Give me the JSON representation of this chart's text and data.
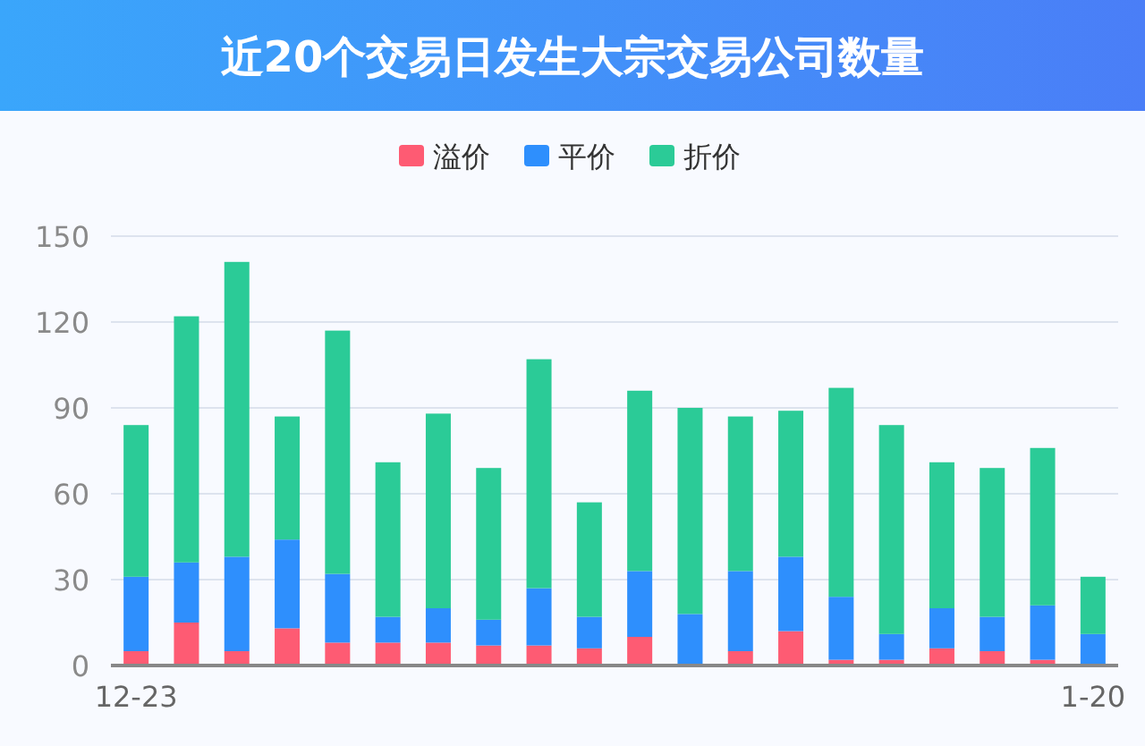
{
  "chart_data": {
    "type": "bar",
    "title": "近20个交易日发生大宗交易公司数量",
    "stacked": true,
    "categories": [
      "12-23",
      null,
      null,
      null,
      null,
      null,
      null,
      null,
      null,
      null,
      null,
      null,
      null,
      null,
      null,
      null,
      null,
      null,
      null,
      "1-20"
    ],
    "series": [
      {
        "name": "溢价",
        "color": "#fe5b73",
        "values": [
          5,
          15,
          5,
          13,
          8,
          8,
          8,
          7,
          7,
          6,
          10,
          0,
          5,
          12,
          2,
          2,
          6,
          5,
          2,
          0
        ]
      },
      {
        "name": "平价",
        "color": "#2e8ffd",
        "values": [
          26,
          21,
          33,
          31,
          24,
          9,
          12,
          9,
          20,
          11,
          23,
          18,
          28,
          26,
          22,
          9,
          14,
          12,
          19,
          11
        ]
      },
      {
        "name": "折价",
        "color": "#2bcb97",
        "values": [
          53,
          86,
          103,
          43,
          85,
          54,
          68,
          53,
          80,
          40,
          63,
          72,
          54,
          51,
          73,
          73,
          51,
          52,
          55,
          20
        ]
      }
    ],
    "ylim": [
      0,
      150
    ],
    "yticks": [
      0,
      30,
      60,
      90,
      120,
      150
    ],
    "grid": "y",
    "legend": "top"
  }
}
